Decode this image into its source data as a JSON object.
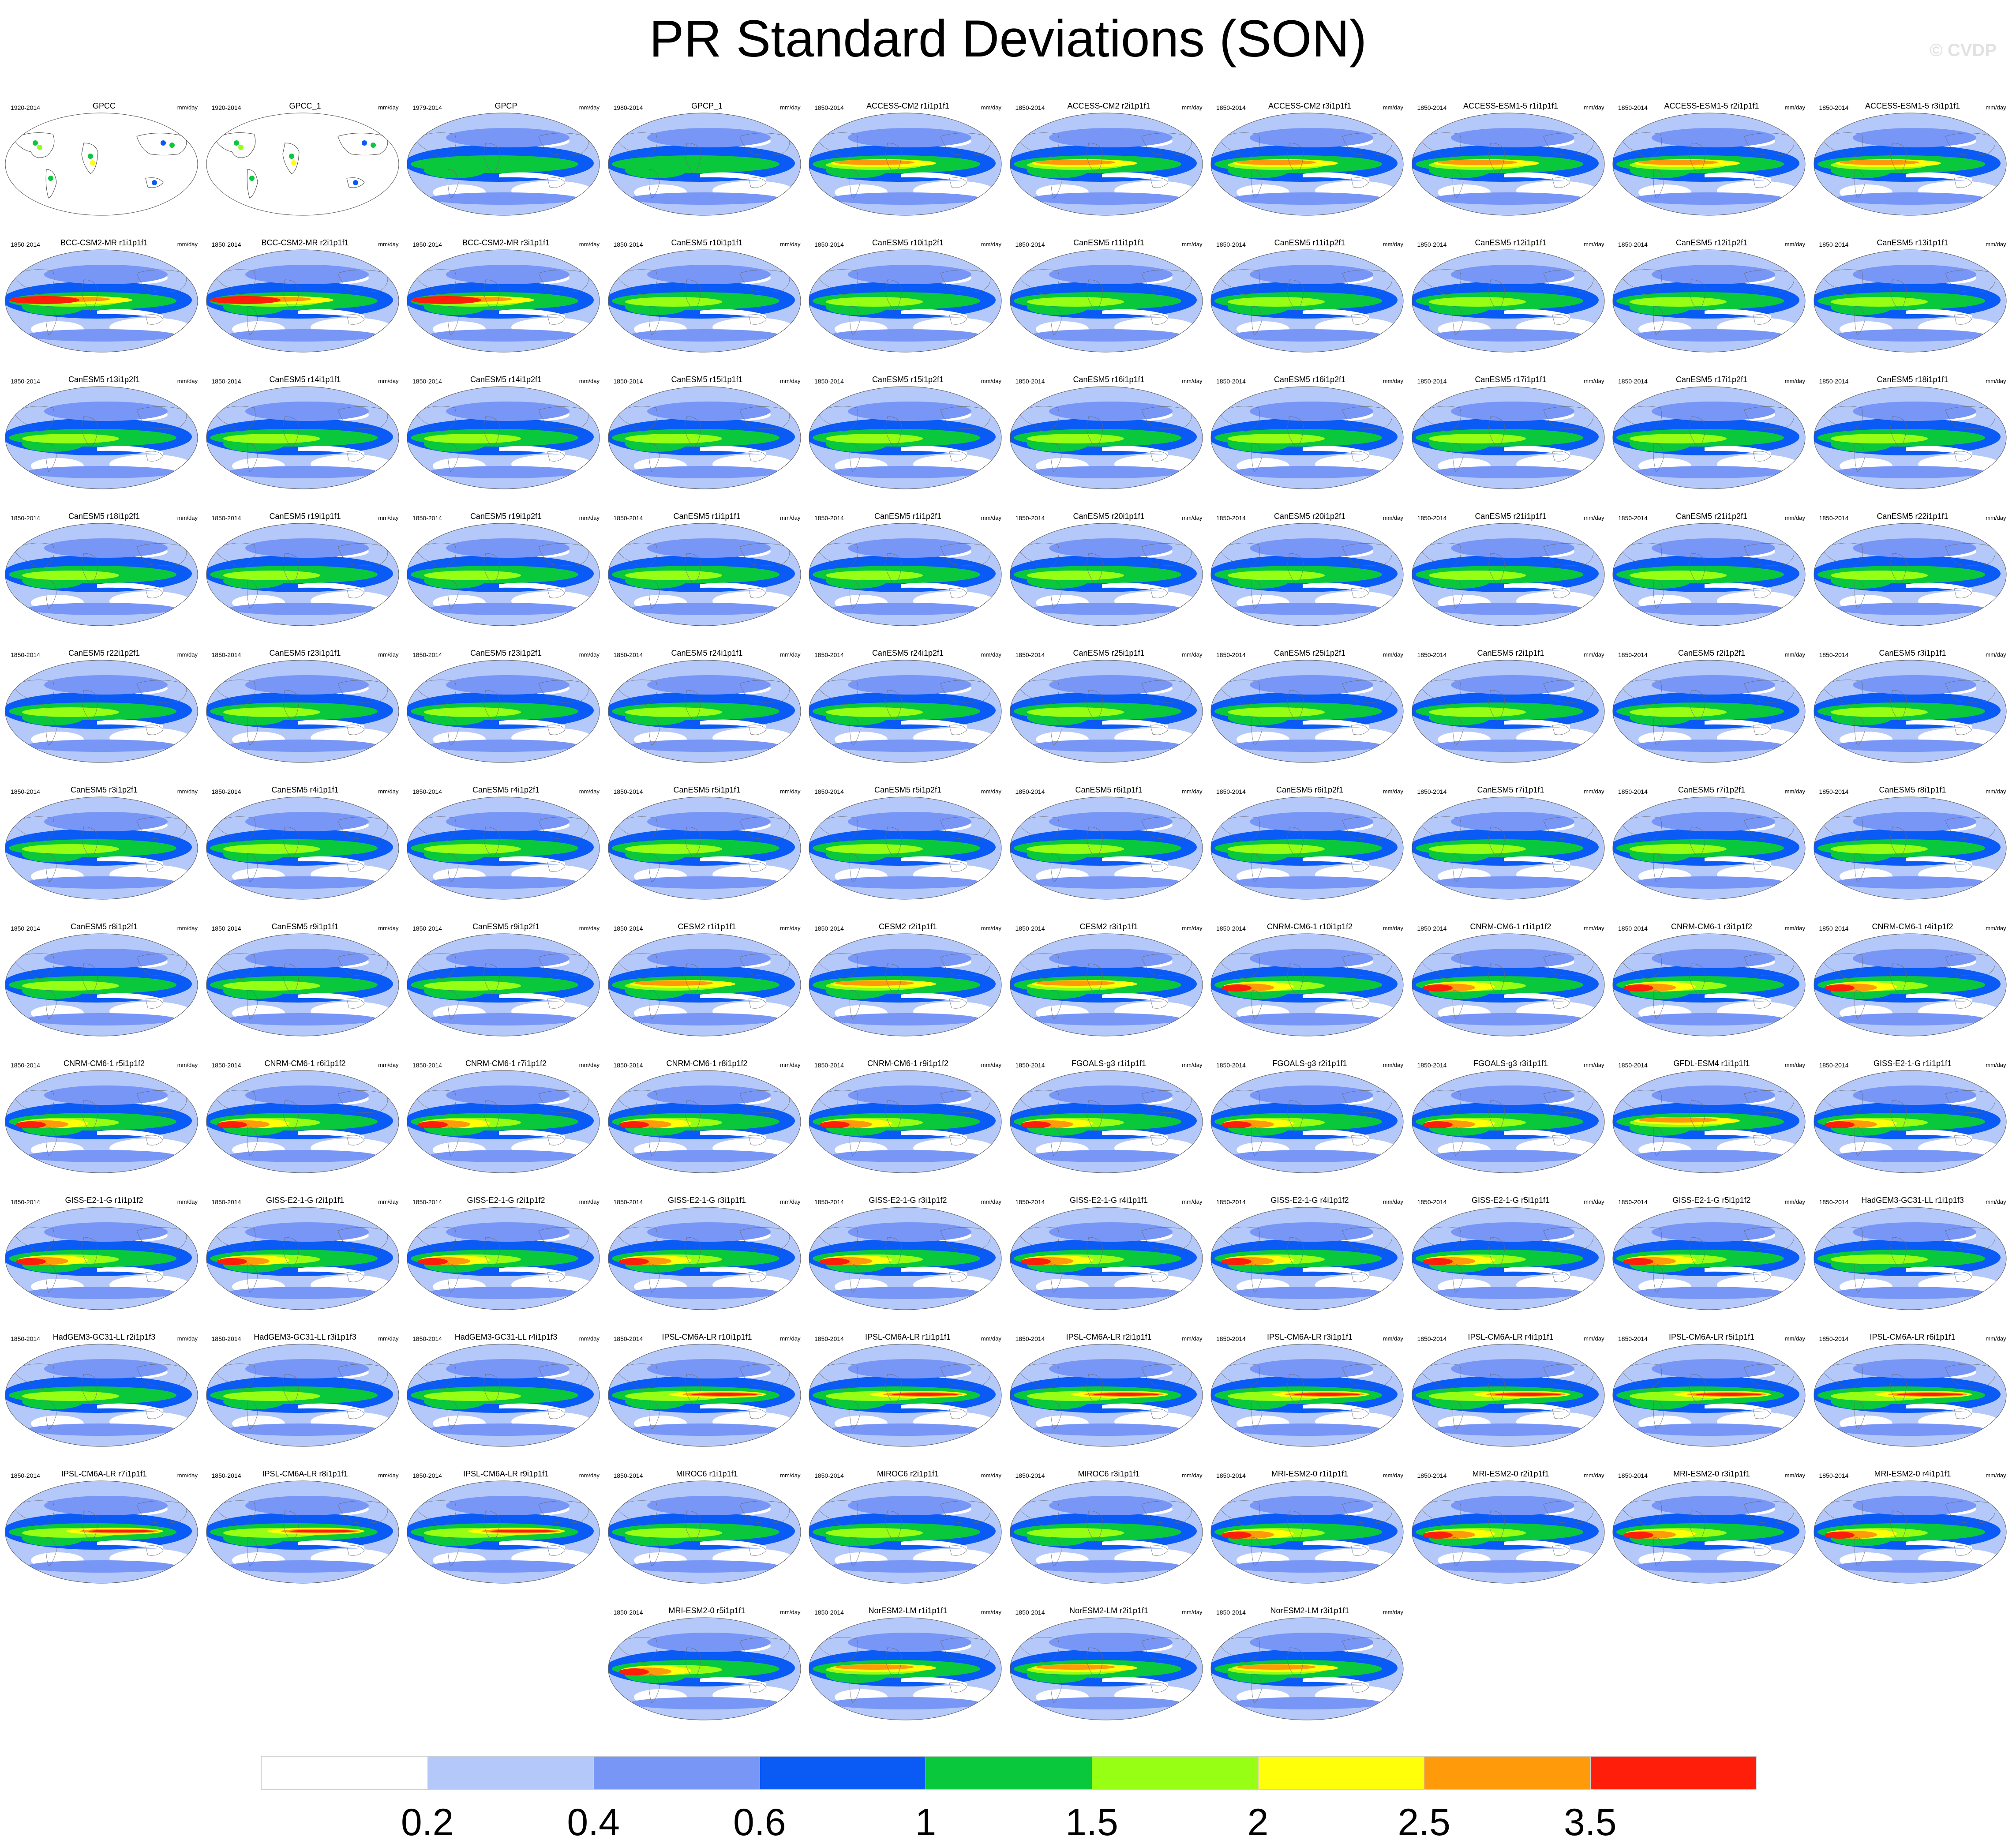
{
  "title": "PR Standard Deviations (SON)",
  "watermark": "© CVDP",
  "units_label": "mm/day",
  "color_scale": {
    "colors": [
      "#ffffff",
      "#b4c8fa",
      "#7896f5",
      "#0a5af5",
      "#0ac83c",
      "#96ff14",
      "#ffff0a",
      "#ff9b0a",
      "#ff1e0a"
    ],
    "boundaries": [
      "0.2",
      "0.4",
      "0.6",
      "1",
      "1.5",
      "2",
      "2.5",
      "3.5"
    ]
  },
  "panels": [
    {
      "title": "GPCC",
      "period": "1920-2014",
      "pattern": "obs-station"
    },
    {
      "title": "GPCC_1",
      "period": "1920-2014",
      "pattern": "obs-station"
    },
    {
      "title": "GPCP",
      "period": "1979-2014",
      "pattern": "obs"
    },
    {
      "title": "GPCP_1",
      "period": "1980-2014",
      "pattern": "obs"
    },
    {
      "title": "ACCESS-CM2 r1i1p1f1",
      "period": "1850-2014",
      "pattern": "high"
    },
    {
      "title": "ACCESS-CM2 r2i1p1f1",
      "period": "1850-2014",
      "pattern": "high"
    },
    {
      "title": "ACCESS-CM2 r3i1p1f1",
      "period": "1850-2014",
      "pattern": "high"
    },
    {
      "title": "ACCESS-ESM1-5 r1i1p1f1",
      "period": "1850-2014",
      "pattern": "high"
    },
    {
      "title": "ACCESS-ESM1-5 r2i1p1f1",
      "period": "1850-2014",
      "pattern": "high"
    },
    {
      "title": "ACCESS-ESM1-5 r3i1p1f1",
      "period": "1850-2014",
      "pattern": "high"
    },
    {
      "title": "BCC-CSM2-MR r1i1p1f1",
      "period": "1850-2014",
      "pattern": "veryhigh"
    },
    {
      "title": "BCC-CSM2-MR r2i1p1f1",
      "period": "1850-2014",
      "pattern": "veryhigh"
    },
    {
      "title": "BCC-CSM2-MR r3i1p1f1",
      "period": "1850-2014",
      "pattern": "veryhigh"
    },
    {
      "title": "CanESM5 r10i1p1f1",
      "period": "1850-2014",
      "pattern": "mid"
    },
    {
      "title": "CanESM5 r10i1p2f1",
      "period": "1850-2014",
      "pattern": "mid"
    },
    {
      "title": "CanESM5 r11i1p1f1",
      "period": "1850-2014",
      "pattern": "mid"
    },
    {
      "title": "CanESM5 r11i1p2f1",
      "period": "1850-2014",
      "pattern": "mid"
    },
    {
      "title": "CanESM5 r12i1p1f1",
      "period": "1850-2014",
      "pattern": "mid"
    },
    {
      "title": "CanESM5 r12i1p2f1",
      "period": "1850-2014",
      "pattern": "mid"
    },
    {
      "title": "CanESM5 r13i1p1f1",
      "period": "1850-2014",
      "pattern": "mid"
    },
    {
      "title": "CanESM5 r13i1p2f1",
      "period": "1850-2014",
      "pattern": "mid"
    },
    {
      "title": "CanESM5 r14i1p1f1",
      "period": "1850-2014",
      "pattern": "mid"
    },
    {
      "title": "CanESM5 r14i1p2f1",
      "period": "1850-2014",
      "pattern": "mid"
    },
    {
      "title": "CanESM5 r15i1p1f1",
      "period": "1850-2014",
      "pattern": "mid"
    },
    {
      "title": "CanESM5 r15i1p2f1",
      "period": "1850-2014",
      "pattern": "mid"
    },
    {
      "title": "CanESM5 r16i1p1f1",
      "period": "1850-2014",
      "pattern": "mid"
    },
    {
      "title": "CanESM5 r16i1p2f1",
      "period": "1850-2014",
      "pattern": "mid"
    },
    {
      "title": "CanESM5 r17i1p1f1",
      "period": "1850-2014",
      "pattern": "mid"
    },
    {
      "title": "CanESM5 r17i1p2f1",
      "period": "1850-2014",
      "pattern": "mid"
    },
    {
      "title": "CanESM5 r18i1p1f1",
      "period": "1850-2014",
      "pattern": "mid"
    },
    {
      "title": "CanESM5 r18i1p2f1",
      "period": "1850-2014",
      "pattern": "mid"
    },
    {
      "title": "CanESM5 r19i1p1f1",
      "period": "1850-2014",
      "pattern": "mid"
    },
    {
      "title": "CanESM5 r19i1p2f1",
      "period": "1850-2014",
      "pattern": "mid"
    },
    {
      "title": "CanESM5 r1i1p1f1",
      "period": "1850-2014",
      "pattern": "mid"
    },
    {
      "title": "CanESM5 r1i1p2f1",
      "period": "1850-2014",
      "pattern": "mid"
    },
    {
      "title": "CanESM5 r20i1p1f1",
      "period": "1850-2014",
      "pattern": "mid"
    },
    {
      "title": "CanESM5 r20i1p2f1",
      "period": "1850-2014",
      "pattern": "mid"
    },
    {
      "title": "CanESM5 r21i1p1f1",
      "period": "1850-2014",
      "pattern": "mid"
    },
    {
      "title": "CanESM5 r21i1p2f1",
      "period": "1850-2014",
      "pattern": "mid"
    },
    {
      "title": "CanESM5 r22i1p1f1",
      "period": "1850-2014",
      "pattern": "mid"
    },
    {
      "title": "CanESM5 r22i1p2f1",
      "period": "1850-2014",
      "pattern": "mid"
    },
    {
      "title": "CanESM5 r23i1p1f1",
      "period": "1850-2014",
      "pattern": "mid"
    },
    {
      "title": "CanESM5 r23i1p2f1",
      "period": "1850-2014",
      "pattern": "mid"
    },
    {
      "title": "CanESM5 r24i1p1f1",
      "period": "1850-2014",
      "pattern": "mid"
    },
    {
      "title": "CanESM5 r24i1p2f1",
      "period": "1850-2014",
      "pattern": "mid"
    },
    {
      "title": "CanESM5 r25i1p1f1",
      "period": "1850-2014",
      "pattern": "mid"
    },
    {
      "title": "CanESM5 r25i1p2f1",
      "period": "1850-2014",
      "pattern": "mid"
    },
    {
      "title": "CanESM5 r2i1p1f1",
      "period": "1850-2014",
      "pattern": "mid"
    },
    {
      "title": "CanESM5 r2i1p2f1",
      "period": "1850-2014",
      "pattern": "mid"
    },
    {
      "title": "CanESM5 r3i1p1f1",
      "period": "1850-2014",
      "pattern": "mid"
    },
    {
      "title": "CanESM5 r3i1p2f1",
      "period": "1850-2014",
      "pattern": "mid"
    },
    {
      "title": "CanESM5 r4i1p1f1",
      "period": "1850-2014",
      "pattern": "mid"
    },
    {
      "title": "CanESM5 r4i1p2f1",
      "period": "1850-2014",
      "pattern": "mid"
    },
    {
      "title": "CanESM5 r5i1p1f1",
      "period": "1850-2014",
      "pattern": "mid"
    },
    {
      "title": "CanESM5 r5i1p2f1",
      "period": "1850-2014",
      "pattern": "mid"
    },
    {
      "title": "CanESM5 r6i1p1f1",
      "period": "1850-2014",
      "pattern": "mid"
    },
    {
      "title": "CanESM5 r6i1p2f1",
      "period": "1850-2014",
      "pattern": "mid"
    },
    {
      "title": "CanESM5 r7i1p1f1",
      "period": "1850-2014",
      "pattern": "mid"
    },
    {
      "title": "CanESM5 r7i1p2f1",
      "period": "1850-2014",
      "pattern": "mid"
    },
    {
      "title": "CanESM5 r8i1p1f1",
      "period": "1850-2014",
      "pattern": "mid"
    },
    {
      "title": "CanESM5 r8i1p2f1",
      "period": "1850-2014",
      "pattern": "mid"
    },
    {
      "title": "CanESM5 r9i1p1f1",
      "period": "1850-2014",
      "pattern": "mid"
    },
    {
      "title": "CanESM5 r9i1p2f1",
      "period": "1850-2014",
      "pattern": "mid"
    },
    {
      "title": "CESM2 r1i1p1f1",
      "period": "1850-2014",
      "pattern": "high"
    },
    {
      "title": "CESM2 r2i1p1f1",
      "period": "1850-2014",
      "pattern": "high"
    },
    {
      "title": "CESM2 r3i1p1f1",
      "period": "1850-2014",
      "pattern": "high"
    },
    {
      "title": "CNRM-CM6-1 r10i1p1f2",
      "period": "1850-2014",
      "pattern": "westpac"
    },
    {
      "title": "CNRM-CM6-1 r1i1p1f2",
      "period": "1850-2014",
      "pattern": "westpac"
    },
    {
      "title": "CNRM-CM6-1 r3i1p1f2",
      "period": "1850-2014",
      "pattern": "westpac"
    },
    {
      "title": "CNRM-CM6-1 r4i1p1f2",
      "period": "1850-2014",
      "pattern": "westpac"
    },
    {
      "title": "CNRM-CM6-1 r5i1p1f2",
      "period": "1850-2014",
      "pattern": "westpac"
    },
    {
      "title": "CNRM-CM6-1 r6i1p1f2",
      "period": "1850-2014",
      "pattern": "westpac"
    },
    {
      "title": "CNRM-CM6-1 r7i1p1f2",
      "period": "1850-2014",
      "pattern": "westpac"
    },
    {
      "title": "CNRM-CM6-1 r8i1p1f2",
      "period": "1850-2014",
      "pattern": "westpac"
    },
    {
      "title": "CNRM-CM6-1 r9i1p1f2",
      "period": "1850-2014",
      "pattern": "westpac"
    },
    {
      "title": "FGOALS-g3 r1i1p1f1",
      "period": "1850-2014",
      "pattern": "westpac"
    },
    {
      "title": "FGOALS-g3 r2i1p1f1",
      "period": "1850-2014",
      "pattern": "westpac"
    },
    {
      "title": "FGOALS-g3 r3i1p1f1",
      "period": "1850-2014",
      "pattern": "westpac"
    },
    {
      "title": "GFDL-ESM4 r1i1p1f1",
      "period": "1850-2014",
      "pattern": "high"
    },
    {
      "title": "GISS-E2-1-G r1i1p1f1",
      "period": "1850-2014",
      "pattern": "westpac"
    },
    {
      "title": "GISS-E2-1-G r1i1p1f2",
      "period": "1850-2014",
      "pattern": "westpac"
    },
    {
      "title": "GISS-E2-1-G r2i1p1f1",
      "period": "1850-2014",
      "pattern": "westpac"
    },
    {
      "title": "GISS-E2-1-G r2i1p1f2",
      "period": "1850-2014",
      "pattern": "westpac"
    },
    {
      "title": "GISS-E2-1-G r3i1p1f1",
      "period": "1850-2014",
      "pattern": "westpac"
    },
    {
      "title": "GISS-E2-1-G r3i1p1f2",
      "period": "1850-2014",
      "pattern": "westpac"
    },
    {
      "title": "GISS-E2-1-G r4i1p1f1",
      "period": "1850-2014",
      "pattern": "westpac"
    },
    {
      "title": "GISS-E2-1-G r4i1p1f2",
      "period": "1850-2014",
      "pattern": "westpac"
    },
    {
      "title": "GISS-E2-1-G r5i1p1f1",
      "period": "1850-2014",
      "pattern": "westpac"
    },
    {
      "title": "GISS-E2-1-G r5i1p1f2",
      "period": "1850-2014",
      "pattern": "westpac"
    },
    {
      "title": "HadGEM3-GC31-LL r1i1p1f3",
      "period": "1850-2014",
      "pattern": "mid"
    },
    {
      "title": "HadGEM3-GC31-LL r2i1p1f3",
      "period": "1850-2014",
      "pattern": "mid"
    },
    {
      "title": "HadGEM3-GC31-LL r3i1p1f3",
      "period": "1850-2014",
      "pattern": "mid"
    },
    {
      "title": "HadGEM3-GC31-LL r4i1p1f3",
      "period": "1850-2014",
      "pattern": "mid"
    },
    {
      "title": "IPSL-CM6A-LR r10i1p1f1",
      "period": "1850-2014",
      "pattern": "eastpac"
    },
    {
      "title": "IPSL-CM6A-LR r1i1p1f1",
      "period": "1850-2014",
      "pattern": "eastpac"
    },
    {
      "title": "IPSL-CM6A-LR r2i1p1f1",
      "period": "1850-2014",
      "pattern": "eastpac"
    },
    {
      "title": "IPSL-CM6A-LR r3i1p1f1",
      "period": "1850-2014",
      "pattern": "eastpac"
    },
    {
      "title": "IPSL-CM6A-LR r4i1p1f1",
      "period": "1850-2014",
      "pattern": "eastpac"
    },
    {
      "title": "IPSL-CM6A-LR r5i1p1f1",
      "period": "1850-2014",
      "pattern": "eastpac"
    },
    {
      "title": "IPSL-CM6A-LR r6i1p1f1",
      "period": "1850-2014",
      "pattern": "eastpac"
    },
    {
      "title": "IPSL-CM6A-LR r7i1p1f1",
      "period": "1850-2014",
      "pattern": "eastpac"
    },
    {
      "title": "IPSL-CM6A-LR r8i1p1f1",
      "period": "1850-2014",
      "pattern": "eastpac"
    },
    {
      "title": "IPSL-CM6A-LR r9i1p1f1",
      "period": "1850-2014",
      "pattern": "eastpac"
    },
    {
      "title": "MIROC6 r1i1p1f1",
      "period": "1850-2014",
      "pattern": "mid"
    },
    {
      "title": "MIROC6 r2i1p1f1",
      "period": "1850-2014",
      "pattern": "mid"
    },
    {
      "title": "MIROC6 r3i1p1f1",
      "period": "1850-2014",
      "pattern": "mid"
    },
    {
      "title": "MRI-ESM2-0 r1i1p1f1",
      "period": "1850-2014",
      "pattern": "westpac"
    },
    {
      "title": "MRI-ESM2-0 r2i1p1f1",
      "period": "1850-2014",
      "pattern": "westpac"
    },
    {
      "title": "MRI-ESM2-0 r3i1p1f1",
      "period": "1850-2014",
      "pattern": "westpac"
    },
    {
      "title": "MRI-ESM2-0 r4i1p1f1",
      "period": "1850-2014",
      "pattern": "westpac"
    },
    {
      "title": "MRI-ESM2-0 r5i1p1f1",
      "period": "1850-2014",
      "pattern": "westpac"
    },
    {
      "title": "NorESM2-LM r1i1p1f1",
      "period": "1850-2014",
      "pattern": "high"
    },
    {
      "title": "NorESM2-LM r2i1p1f1",
      "period": "1850-2014",
      "pattern": "high"
    },
    {
      "title": "NorESM2-LM r3i1p1f1",
      "period": "1850-2014",
      "pattern": "high"
    }
  ]
}
